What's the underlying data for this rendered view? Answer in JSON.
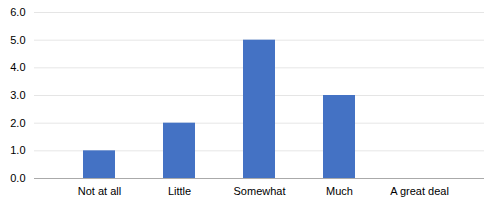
{
  "chart_data": {
    "type": "bar",
    "categories": [
      "Not at all",
      "Little",
      "Somewhat",
      "Much",
      "A great deal"
    ],
    "values": [
      1,
      2,
      5,
      3,
      0
    ],
    "color": "#4472c4",
    "ylim": [
      0,
      6
    ],
    "yticks": [
      0,
      1,
      2,
      3,
      4,
      5,
      6
    ],
    "grid": true
  }
}
